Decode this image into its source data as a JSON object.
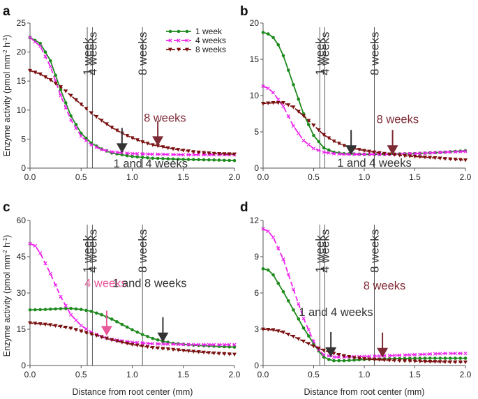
{
  "figure": {
    "x_axis_title": "Distance from root center (mm)",
    "y_axis_title": "Enzyme activity (pmol mm",
    "y_axis_title_sup": "-2",
    "y_axis_title_mid": " h",
    "y_axis_title_sup2": "-1",
    "y_axis_title_end": ")",
    "colors": {
      "w1": "#1e8a1e",
      "w4": "#ee22ee",
      "w8": "#7a1010",
      "arrow_dark": "#333333",
      "arrow_red": "#7e2a35",
      "arrow_pink": "#e8589a"
    },
    "legend": [
      {
        "key": "w1",
        "label": "1 week"
      },
      {
        "key": "w4",
        "label": "4 weeks"
      },
      {
        "key": "w8",
        "label": "8 weeks"
      }
    ]
  },
  "chart_data": [
    {
      "panel": "a",
      "type": "line",
      "xlim": [
        0,
        2
      ],
      "ylim": [
        0,
        25
      ],
      "xticks": [
        "0.0",
        "0.5",
        "1.0",
        "1.5",
        "2.0"
      ],
      "yticks": [
        "0",
        "5",
        "10",
        "15",
        "20",
        "25"
      ],
      "show_legend": true,
      "series": [
        {
          "key": "w1",
          "name": "1 week",
          "x": [
            0,
            0.1,
            0.2,
            0.3,
            0.4,
            0.5,
            0.6,
            0.7,
            0.8,
            1.0,
            1.2,
            1.5,
            1.8,
            2.0
          ],
          "y": [
            22.5,
            21.5,
            18.5,
            13.5,
            9,
            6,
            4.3,
            3.3,
            2.6,
            2.0,
            1.7,
            1.5,
            1.4,
            1.3
          ]
        },
        {
          "key": "w4",
          "name": "4 weeks",
          "x": [
            0,
            0.1,
            0.2,
            0.3,
            0.4,
            0.5,
            0.6,
            0.7,
            0.8,
            1.0,
            1.2,
            1.5,
            1.8,
            2.0
          ],
          "y": [
            22.5,
            21,
            17.5,
            12.5,
            8.3,
            5.5,
            4.0,
            3.2,
            2.8,
            2.5,
            2.4,
            2.3,
            2.3,
            2.3
          ]
        },
        {
          "key": "w8",
          "name": "8 weeks",
          "x": [
            0,
            0.1,
            0.2,
            0.3,
            0.4,
            0.5,
            0.6,
            0.7,
            0.8,
            0.9,
            1.0,
            1.1,
            1.2,
            1.4,
            1.6,
            1.8,
            2.0
          ],
          "y": [
            16.8,
            16.2,
            15.2,
            14.0,
            12.5,
            11.0,
            9.5,
            8.2,
            7.0,
            6.0,
            5.2,
            4.5,
            4.0,
            3.3,
            2.8,
            2.5,
            2.4
          ]
        }
      ],
      "vlines": [
        {
          "x": 0.56,
          "label": "1 week"
        },
        {
          "x": 0.61,
          "label": "4 weeks"
        },
        {
          "x": 1.1,
          "label": "8 weeks"
        }
      ],
      "arrows": [
        {
          "x": 0.9,
          "y": 2.6,
          "color": "arrow_dark"
        },
        {
          "x": 1.25,
          "y": 3.8,
          "color": "arrow_red"
        }
      ],
      "annotations": [
        {
          "text": "8 weeks",
          "x": 1.32,
          "y": 8.0,
          "color": "arrow_red"
        },
        {
          "text": "1 and 4 weeks",
          "x": 1.18,
          "y": 0.1,
          "color": "arrow_dark"
        }
      ]
    },
    {
      "panel": "b",
      "type": "line",
      "xlim": [
        0,
        2
      ],
      "ylim": [
        0,
        20
      ],
      "xticks": [
        "0.0",
        "0.5",
        "1.0",
        "1.5",
        "2.0"
      ],
      "yticks": [
        "0",
        "5",
        "10",
        "15",
        "20"
      ],
      "show_legend": false,
      "series": [
        {
          "key": "w1",
          "name": "1 week",
          "x": [
            0,
            0.05,
            0.1,
            0.15,
            0.2,
            0.3,
            0.4,
            0.5,
            0.6,
            0.7,
            0.8,
            1.0,
            1.2,
            1.5,
            1.8,
            2.0
          ],
          "y": [
            18.7,
            18.5,
            18,
            17,
            15.5,
            11.5,
            7.5,
            4.5,
            2.8,
            2.2,
            2.0,
            1.9,
            1.9,
            2.0,
            2.2,
            2.4
          ]
        },
        {
          "key": "w4",
          "name": "4 weeks",
          "x": [
            0,
            0.05,
            0.1,
            0.2,
            0.3,
            0.4,
            0.5,
            0.6,
            0.7,
            0.8,
            1.0,
            1.2,
            1.5,
            1.8,
            2.0
          ],
          "y": [
            11.3,
            11,
            10.4,
            8.5,
            5.8,
            3.8,
            2.7,
            2.2,
            2.0,
            1.9,
            1.9,
            1.9,
            2.0,
            2.2,
            2.3
          ]
        },
        {
          "key": "w8",
          "name": "8 weeks",
          "x": [
            0,
            0.1,
            0.2,
            0.3,
            0.4,
            0.5,
            0.6,
            0.7,
            0.8,
            0.9,
            1.0,
            1.2,
            1.4,
            1.6,
            1.8,
            2.0
          ],
          "y": [
            8.9,
            9.0,
            9.0,
            8.4,
            7.2,
            5.9,
            4.6,
            3.7,
            3.1,
            2.7,
            2.4,
            2.0,
            1.7,
            1.5,
            1.3,
            1.1
          ]
        }
      ],
      "vlines": [
        {
          "x": 0.56,
          "label": "1 week"
        },
        {
          "x": 0.61,
          "label": "4 weeks"
        },
        {
          "x": 1.1,
          "label": "8 weeks"
        }
      ],
      "arrows": [
        {
          "x": 0.87,
          "y": 1.8,
          "color": "arrow_dark"
        },
        {
          "x": 1.28,
          "y": 1.8,
          "color": "arrow_red"
        }
      ],
      "annotations": [
        {
          "text": "8 weeks",
          "x": 1.33,
          "y": 6.2,
          "color": "arrow_red"
        },
        {
          "text": "1 and 4 weeks",
          "x": 1.1,
          "y": 0.2,
          "color": "arrow_dark"
        }
      ]
    },
    {
      "panel": "c",
      "type": "line",
      "xlim": [
        0,
        2
      ],
      "ylim": [
        0,
        60
      ],
      "xticks": [
        "0.0",
        "0.5",
        "1.0",
        "1.5",
        "2.0"
      ],
      "yticks": [
        "0",
        "15",
        "30",
        "45",
        "60"
      ],
      "show_legend": false,
      "series": [
        {
          "key": "w1",
          "name": "1 week",
          "x": [
            0,
            0.1,
            0.2,
            0.3,
            0.4,
            0.5,
            0.6,
            0.7,
            0.8,
            0.9,
            1.0,
            1.1,
            1.2,
            1.3,
            1.4,
            1.6,
            1.8,
            2.0
          ],
          "y": [
            23,
            23.1,
            23.3,
            23.5,
            23.6,
            23.2,
            22.4,
            21,
            19.2,
            17,
            14.8,
            12.8,
            11.2,
            10,
            9.2,
            8.4,
            8.0,
            7.6
          ]
        },
        {
          "key": "w4",
          "name": "4 weeks",
          "x": [
            0,
            0.05,
            0.1,
            0.2,
            0.3,
            0.4,
            0.5,
            0.6,
            0.7,
            0.8,
            1.0,
            1.2,
            1.5,
            1.8,
            2.0
          ],
          "y": [
            50.4,
            49.5,
            46.5,
            38,
            28.5,
            21,
            16.5,
            13.8,
            12.0,
            10.8,
            9.6,
            9.0,
            8.7,
            8.6,
            8.6
          ]
        },
        {
          "key": "w8",
          "name": "8 weeks",
          "x": [
            0,
            0.2,
            0.4,
            0.5,
            0.6,
            0.7,
            0.8,
            0.9,
            1.0,
            1.1,
            1.2,
            1.4,
            1.6,
            1.8,
            2.0
          ],
          "y": [
            17.6,
            16.8,
            15.4,
            14.2,
            13.0,
            11.8,
            10.6,
            9.6,
            8.7,
            8.0,
            7.4,
            6.6,
            5.8,
            5.1,
            4.6
          ]
        }
      ],
      "vlines": [
        {
          "x": 0.56,
          "label": "1 week"
        },
        {
          "x": 0.61,
          "label": "4 weeks"
        },
        {
          "x": 1.1,
          "label": "8 weeks"
        }
      ],
      "arrows": [
        {
          "x": 0.75,
          "y": 12.3,
          "color": "arrow_pink"
        },
        {
          "x": 1.3,
          "y": 9.6,
          "color": "arrow_dark"
        }
      ],
      "annotations": [
        {
          "text": "4 weeks",
          "x": 0.74,
          "y": 32.5,
          "color": "arrow_pink"
        },
        {
          "text": "1 and 8 weeks",
          "x": 1.17,
          "y": 32.5,
          "color": "arrow_dark"
        }
      ]
    },
    {
      "panel": "d",
      "type": "line",
      "xlim": [
        0,
        2
      ],
      "ylim": [
        0,
        12
      ],
      "xticks": [
        "0.0",
        "0.5",
        "1.0",
        "1.5",
        "2.0"
      ],
      "yticks": [
        "0",
        "3",
        "6",
        "9",
        "12"
      ],
      "show_legend": false,
      "series": [
        {
          "key": "w1",
          "name": "1 week",
          "x": [
            0,
            0.05,
            0.1,
            0.2,
            0.3,
            0.4,
            0.5,
            0.55,
            0.6,
            0.65,
            0.7,
            0.8,
            0.9,
            1.0,
            1.2,
            1.5,
            1.8,
            2.0
          ],
          "y": [
            8.0,
            7.9,
            7.5,
            6.1,
            4.6,
            3.1,
            1.8,
            1.2,
            0.7,
            0.5,
            0.4,
            0.4,
            0.45,
            0.5,
            0.55,
            0.6,
            0.6,
            0.6
          ]
        },
        {
          "key": "w4",
          "name": "4 weeks",
          "x": [
            0,
            0.05,
            0.1,
            0.2,
            0.3,
            0.4,
            0.5,
            0.55,
            0.6,
            0.7,
            0.8,
            1.0,
            1.2,
            1.5,
            1.8,
            2.0
          ],
          "y": [
            11.3,
            11.1,
            10.6,
            8.8,
            6.3,
            3.9,
            2.0,
            1.3,
            0.9,
            0.7,
            0.7,
            0.75,
            0.8,
            0.9,
            1.0,
            1.0
          ]
        },
        {
          "key": "w8",
          "name": "8 weeks",
          "x": [
            0,
            0.1,
            0.2,
            0.3,
            0.4,
            0.5,
            0.6,
            0.7,
            0.8,
            0.9,
            1.0,
            1.2,
            1.4,
            1.6,
            1.8,
            2.0
          ],
          "y": [
            3.0,
            2.95,
            2.75,
            2.4,
            2.0,
            1.6,
            1.25,
            1.0,
            0.8,
            0.65,
            0.55,
            0.45,
            0.38,
            0.33,
            0.3,
            0.28
          ]
        }
      ],
      "vlines": [
        {
          "x": 0.56,
          "label": "1 week"
        },
        {
          "x": 0.61,
          "label": "4 weeks"
        },
        {
          "x": 1.1,
          "label": "8 weeks"
        }
      ],
      "arrows": [
        {
          "x": 0.67,
          "y": 0.7,
          "color": "arrow_dark"
        },
        {
          "x": 1.18,
          "y": 0.65,
          "color": "arrow_red"
        }
      ],
      "annotations": [
        {
          "text": "8 weeks",
          "x": 1.2,
          "y": 6.3,
          "color": "arrow_red"
        },
        {
          "text": "1 and 4 weeks",
          "x": 0.72,
          "y": 4.1,
          "color": "arrow_dark"
        }
      ]
    }
  ]
}
